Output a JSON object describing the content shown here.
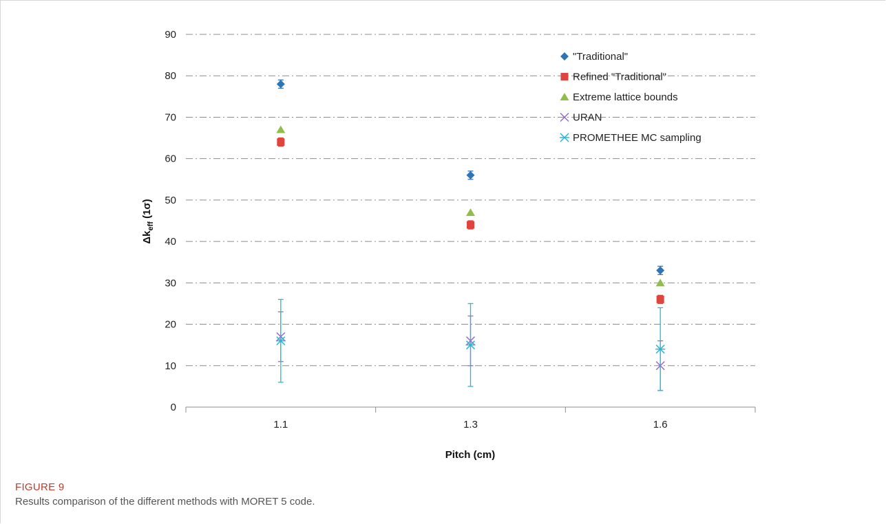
{
  "chart_data": {
    "type": "scatter",
    "xlabel": "Pitch (cm)",
    "ylabel_main": "Δk",
    "ylabel_sub": "eff",
    "ylabel_tail": " (1σ)",
    "categories": [
      "1.1",
      "1.3",
      "1.6"
    ],
    "ylim": [
      0,
      90
    ],
    "yticks": [
      0,
      10,
      20,
      30,
      40,
      50,
      60,
      70,
      80,
      90
    ],
    "grid": true,
    "legend_position": "top-right",
    "series": [
      {
        "name": "\"Traditional\"",
        "marker": "diamond",
        "color": "#2e75b6",
        "values": [
          78,
          56,
          33
        ],
        "error": [
          1,
          1,
          1
        ]
      },
      {
        "name": "Refined \"Traditional\"",
        "marker": "square",
        "color": "#e0443c",
        "values": [
          64,
          44,
          26
        ],
        "error": [
          1,
          1,
          1
        ]
      },
      {
        "name": "Extreme lattice bounds",
        "marker": "triangle",
        "color": "#8fbf4a",
        "values": [
          67,
          47,
          30
        ],
        "error": [
          0,
          0,
          0
        ]
      },
      {
        "name": "URAN",
        "marker": "x",
        "color": "#9966cc",
        "values": [
          17,
          16,
          10
        ],
        "error": [
          6,
          6,
          6
        ]
      },
      {
        "name": "PROMETHEE MC sampling",
        "marker": "star",
        "color": "#29b6d6",
        "values": [
          16,
          15,
          14
        ],
        "error": [
          10,
          10,
          10
        ]
      }
    ]
  },
  "caption": {
    "label": "FIGURE 9",
    "text": "Results comparison of the different methods with MORET 5 code."
  }
}
